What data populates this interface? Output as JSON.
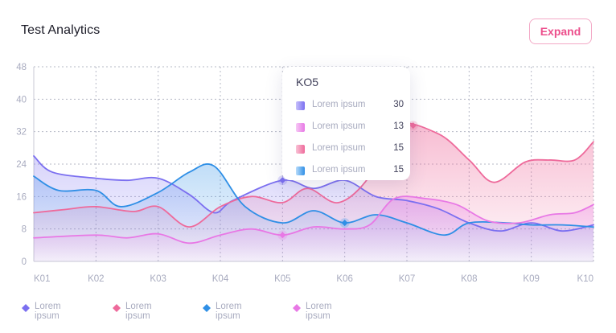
{
  "header": {
    "title": "Test Analytics",
    "expand_label": "Expand"
  },
  "colors": {
    "purple": "#7b6ff0",
    "pink": "#ee6a9b",
    "blue": "#2f8fe6",
    "magenta": "#e878e5",
    "accent": "#ec4f8c"
  },
  "chart_data": {
    "type": "area",
    "categories": [
      "K01",
      "K02",
      "K03",
      "K04",
      "K05",
      "K06",
      "K07",
      "K08",
      "K09",
      "K10"
    ],
    "y_ticks": [
      0,
      8,
      16,
      24,
      32,
      40,
      48
    ],
    "ylim": [
      0,
      48
    ],
    "grid": true,
    "legend_position": "bottom-left",
    "series": [
      {
        "name": "Lorem ipsum",
        "color": "#7b6ff0",
        "points": [
          [
            1,
            26
          ],
          [
            1.3,
            22
          ],
          [
            2,
            20.5
          ],
          [
            2.5,
            20
          ],
          [
            3,
            20.5
          ],
          [
            3.5,
            16.5
          ],
          [
            3.9,
            12
          ],
          [
            4.2,
            15
          ],
          [
            5,
            20
          ],
          [
            5.5,
            18
          ],
          [
            6,
            20
          ],
          [
            6.5,
            16
          ],
          [
            7,
            15
          ],
          [
            7.5,
            13
          ],
          [
            8,
            9.5
          ],
          [
            8.5,
            7.5
          ],
          [
            9,
            9.5
          ],
          [
            9.5,
            7.5
          ],
          [
            10,
            9
          ]
        ]
      },
      {
        "name": "Lorem ipsum",
        "color": "#ee6a9b",
        "points": [
          [
            1,
            12
          ],
          [
            1.5,
            12.8
          ],
          [
            2,
            13.5
          ],
          [
            2.6,
            12.3
          ],
          [
            3,
            13.5
          ],
          [
            3.5,
            8.5
          ],
          [
            4,
            13.5
          ],
          [
            4.5,
            16
          ],
          [
            5,
            14.5
          ],
          [
            5.4,
            18
          ],
          [
            5.9,
            14.5
          ],
          [
            6.4,
            21
          ],
          [
            6.8,
            33.5
          ],
          [
            7.5,
            31.5
          ],
          [
            8,
            25
          ],
          [
            8.4,
            19.5
          ],
          [
            8.9,
            24.5
          ],
          [
            9.3,
            25
          ],
          [
            9.7,
            25
          ],
          [
            10,
            29.5
          ]
        ]
      },
      {
        "name": "Lorem ipsum",
        "color": "#2f8fe6",
        "points": [
          [
            1,
            21
          ],
          [
            1.4,
            17.5
          ],
          [
            2,
            17.5
          ],
          [
            2.4,
            13.5
          ],
          [
            3,
            17
          ],
          [
            3.5,
            22
          ],
          [
            3.9,
            23.5
          ],
          [
            4.4,
            13.5
          ],
          [
            5,
            9.5
          ],
          [
            5.5,
            12.5
          ],
          [
            6,
            9.5
          ],
          [
            6.5,
            11.5
          ],
          [
            7,
            9.5
          ],
          [
            7.6,
            6.5
          ],
          [
            8,
            9.5
          ],
          [
            8.6,
            9.5
          ],
          [
            9,
            9
          ],
          [
            9.5,
            9
          ],
          [
            10,
            8.5
          ]
        ]
      },
      {
        "name": "Lorem ipsum",
        "color": "#e878e5",
        "points": [
          [
            1,
            5.8
          ],
          [
            2,
            6.5
          ],
          [
            2.5,
            5.8
          ],
          [
            3,
            6.8
          ],
          [
            3.5,
            4.5
          ],
          [
            4,
            6.5
          ],
          [
            4.5,
            8
          ],
          [
            5,
            6.5
          ],
          [
            5.5,
            8.5
          ],
          [
            6,
            8
          ],
          [
            6.4,
            9
          ],
          [
            6.8,
            15.5
          ],
          [
            7.3,
            15.5
          ],
          [
            7.8,
            14
          ],
          [
            8.3,
            10
          ],
          [
            8.8,
            9.5
          ],
          [
            9.3,
            11.5
          ],
          [
            9.7,
            12
          ],
          [
            10,
            14
          ]
        ]
      }
    ],
    "markers": [
      {
        "series": 0,
        "x": 5,
        "y": 20
      },
      {
        "series": 1,
        "x": 7.1,
        "y": 33.5
      },
      {
        "series": 2,
        "x": 6,
        "y": 9.5
      },
      {
        "series": 3,
        "x": 5,
        "y": 6.5
      }
    ],
    "tooltip": {
      "title": "KO5",
      "rows": [
        {
          "label": "Lorem ipsum",
          "value": "30"
        },
        {
          "label": "Lorem ipsum",
          "value": "13"
        },
        {
          "label": "Lorem ipsum",
          "value": "15"
        },
        {
          "label": "Lorem ipsum",
          "value": "15"
        }
      ]
    }
  }
}
